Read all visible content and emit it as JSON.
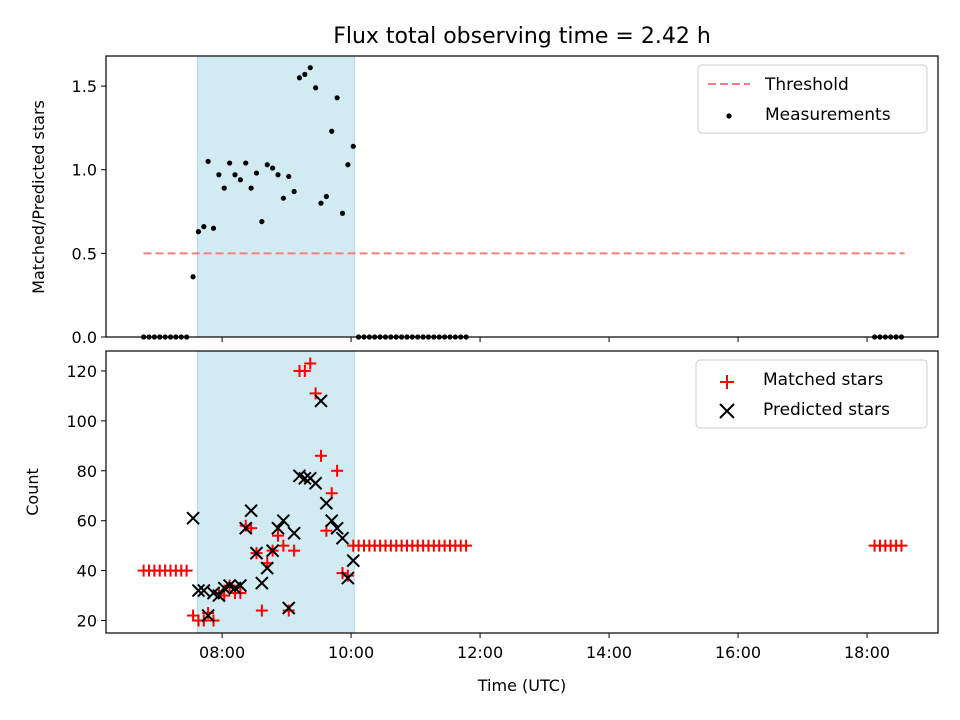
{
  "chart_data": {
    "title": "Flux total observing time = 2.42 h",
    "xlabel": "Time (UTC)",
    "xticks": [
      {
        "h": 8,
        "label": "08:00"
      },
      {
        "h": 10,
        "label": "10:00"
      },
      {
        "h": 12,
        "label": "12:00"
      },
      {
        "h": 14,
        "label": "14:00"
      },
      {
        "h": 16,
        "label": "16:00"
      },
      {
        "h": 18,
        "label": "18:00"
      }
    ],
    "observing_window": {
      "start": "07:37",
      "end": "10:03",
      "color": "#add8e6"
    },
    "panels": [
      {
        "type": "scatter",
        "ylabel": "Matched/Predicted stars",
        "ylim": [
          0,
          1.68
        ],
        "yticks": [
          0.0,
          0.5,
          1.0,
          1.5
        ],
        "ytick_labels": [
          "0.0",
          "0.5",
          "1.0",
          "1.5"
        ],
        "legend_loc": "upper right",
        "threshold": {
          "name": "Threshold",
          "value": 0.5,
          "x_start": "06:47",
          "x_end": "18:35",
          "color": "#f08080"
        },
        "series": [
          {
            "name": "Measurements",
            "color": "#000000",
            "marker": "dot",
            "points": [
              [
                "06:47",
                0
              ],
              [
                "06:52",
                0
              ],
              [
                "06:57",
                0
              ],
              [
                "07:02",
                0
              ],
              [
                "07:07",
                0
              ],
              [
                "07:12",
                0
              ],
              [
                "07:17",
                0
              ],
              [
                "07:22",
                0
              ],
              [
                "07:27",
                0
              ],
              [
                "07:33",
                0.36
              ],
              [
                "07:38",
                0.63
              ],
              [
                "07:43",
                0.66
              ],
              [
                "07:47",
                1.05
              ],
              [
                "07:52",
                0.65
              ],
              [
                "07:57",
                0.97
              ],
              [
                "08:02",
                0.89
              ],
              [
                "08:07",
                1.04
              ],
              [
                "08:12",
                0.97
              ],
              [
                "08:17",
                0.94
              ],
              [
                "08:22",
                1.04
              ],
              [
                "08:27",
                0.89
              ],
              [
                "08:32",
                0.98
              ],
              [
                "08:37",
                0.69
              ],
              [
                "08:42",
                1.03
              ],
              [
                "08:47",
                1.01
              ],
              [
                "08:52",
                0.97
              ],
              [
                "08:57",
                0.83
              ],
              [
                "09:02",
                0.96
              ],
              [
                "09:07",
                0.87
              ],
              [
                "09:12",
                1.55
              ],
              [
                "09:17",
                1.57
              ],
              [
                "09:22",
                1.61
              ],
              [
                "09:27",
                1.49
              ],
              [
                "09:32",
                0.8
              ],
              [
                "09:37",
                0.84
              ],
              [
                "09:42",
                1.23
              ],
              [
                "09:47",
                1.43
              ],
              [
                "09:52",
                0.74
              ],
              [
                "09:57",
                1.03
              ],
              [
                "10:02",
                1.14
              ],
              [
                "10:07",
                0
              ],
              [
                "10:12",
                0
              ],
              [
                "10:17",
                0
              ],
              [
                "10:22",
                0
              ],
              [
                "10:27",
                0
              ],
              [
                "10:32",
                0
              ],
              [
                "10:37",
                0
              ],
              [
                "10:42",
                0
              ],
              [
                "10:47",
                0
              ],
              [
                "10:52",
                0
              ],
              [
                "10:57",
                0
              ],
              [
                "11:02",
                0
              ],
              [
                "11:07",
                0
              ],
              [
                "11:12",
                0
              ],
              [
                "11:17",
                0
              ],
              [
                "11:22",
                0
              ],
              [
                "11:27",
                0
              ],
              [
                "11:32",
                0
              ],
              [
                "11:37",
                0
              ],
              [
                "11:42",
                0
              ],
              [
                "11:47",
                0
              ],
              [
                "18:07",
                0
              ],
              [
                "18:12",
                0
              ],
              [
                "18:17",
                0
              ],
              [
                "18:22",
                0
              ],
              [
                "18:27",
                0
              ],
              [
                "18:32",
                0
              ]
            ]
          }
        ]
      },
      {
        "type": "scatter",
        "ylabel": "Count",
        "ylim": [
          15,
          128
        ],
        "yticks": [
          20,
          40,
          60,
          80,
          100,
          120
        ],
        "ytick_labels": [
          "20",
          "40",
          "60",
          "80",
          "100",
          "120"
        ],
        "legend_loc": "upper right",
        "series": [
          {
            "name": "Matched stars",
            "color": "#ff0000",
            "marker": "plus",
            "points": [
              [
                "06:47",
                40
              ],
              [
                "06:52",
                40
              ],
              [
                "06:57",
                40
              ],
              [
                "07:02",
                40
              ],
              [
                "07:07",
                40
              ],
              [
                "07:12",
                40
              ],
              [
                "07:17",
                40
              ],
              [
                "07:22",
                40
              ],
              [
                "07:27",
                40
              ],
              [
                "07:33",
                22
              ],
              [
                "07:38",
                20
              ],
              [
                "07:43",
                20
              ],
              [
                "07:47",
                23
              ],
              [
                "07:52",
                20
              ],
              [
                "07:57",
                31
              ],
              [
                "08:02",
                30
              ],
              [
                "08:07",
                34
              ],
              [
                "08:12",
                31
              ],
              [
                "08:17",
                31
              ],
              [
                "08:22",
                58
              ],
              [
                "08:27",
                57
              ],
              [
                "08:32",
                47
              ],
              [
                "08:37",
                24
              ],
              [
                "08:42",
                43
              ],
              [
                "08:47",
                48
              ],
              [
                "08:52",
                54
              ],
              [
                "08:57",
                50
              ],
              [
                "09:02",
                24
              ],
              [
                "09:07",
                48
              ],
              [
                "09:12",
                120
              ],
              [
                "09:17",
                120
              ],
              [
                "09:22",
                123
              ],
              [
                "09:27",
                111
              ],
              [
                "09:32",
                86
              ],
              [
                "09:37",
                56
              ],
              [
                "09:42",
                71
              ],
              [
                "09:47",
                80
              ],
              [
                "09:52",
                39
              ],
              [
                "09:57",
                38
              ],
              [
                "10:02",
                50
              ],
              [
                "10:07",
                50
              ],
              [
                "10:12",
                50
              ],
              [
                "10:17",
                50
              ],
              [
                "10:22",
                50
              ],
              [
                "10:27",
                50
              ],
              [
                "10:32",
                50
              ],
              [
                "10:37",
                50
              ],
              [
                "10:42",
                50
              ],
              [
                "10:47",
                50
              ],
              [
                "10:52",
                50
              ],
              [
                "10:57",
                50
              ],
              [
                "11:02",
                50
              ],
              [
                "11:07",
                50
              ],
              [
                "11:12",
                50
              ],
              [
                "11:17",
                50
              ],
              [
                "11:22",
                50
              ],
              [
                "11:27",
                50
              ],
              [
                "11:32",
                50
              ],
              [
                "11:37",
                50
              ],
              [
                "11:42",
                50
              ],
              [
                "11:47",
                50
              ],
              [
                "18:07",
                50
              ],
              [
                "18:12",
                50
              ],
              [
                "18:17",
                50
              ],
              [
                "18:22",
                50
              ],
              [
                "18:27",
                50
              ],
              [
                "18:32",
                50
              ]
            ]
          },
          {
            "name": "Predicted stars",
            "color": "#000000",
            "marker": "x",
            "points": [
              [
                "07:33",
                61
              ],
              [
                "07:38",
                32
              ],
              [
                "07:43",
                32
              ],
              [
                "07:47",
                22
              ],
              [
                "07:52",
                31
              ],
              [
                "07:57",
                30
              ],
              [
                "08:02",
                33
              ],
              [
                "08:07",
                34
              ],
              [
                "08:12",
                33
              ],
              [
                "08:17",
                34
              ],
              [
                "08:22",
                57
              ],
              [
                "08:27",
                64
              ],
              [
                "08:32",
                47
              ],
              [
                "08:37",
                35
              ],
              [
                "08:42",
                41
              ],
              [
                "08:47",
                48
              ],
              [
                "08:52",
                57
              ],
              [
                "08:57",
                60
              ],
              [
                "09:02",
                25
              ],
              [
                "09:07",
                55
              ],
              [
                "09:12",
                78
              ],
              [
                "09:17",
                77
              ],
              [
                "09:22",
                77
              ],
              [
                "09:27",
                75
              ],
              [
                "09:32",
                108
              ],
              [
                "09:37",
                67
              ],
              [
                "09:42",
                60
              ],
              [
                "09:47",
                57
              ],
              [
                "09:52",
                53
              ],
              [
                "09:57",
                37
              ],
              [
                "10:02",
                44
              ]
            ]
          }
        ]
      }
    ]
  }
}
